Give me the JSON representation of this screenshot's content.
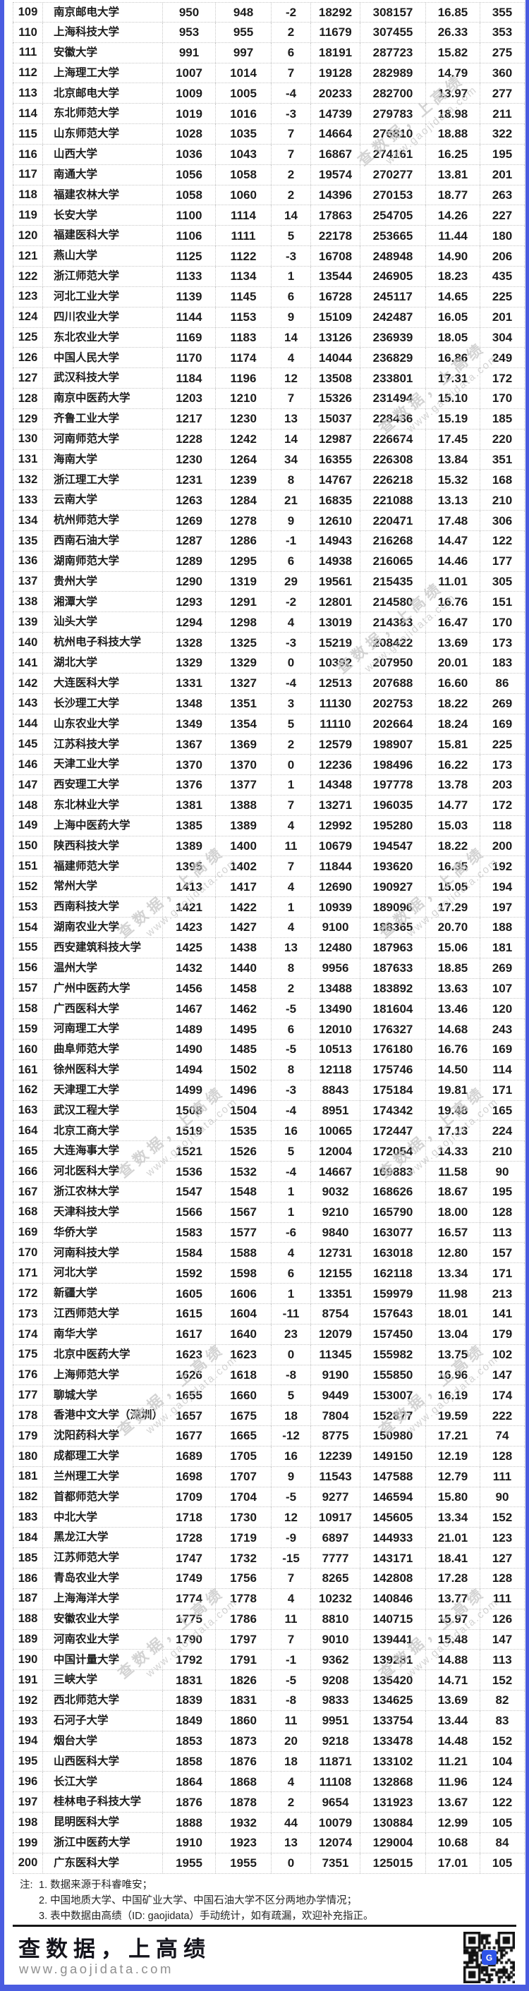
{
  "table": {
    "rows": [
      [
        "109",
        "南京邮电大学",
        "950",
        "948",
        "-2",
        "18292",
        "308157",
        "16.85",
        "355"
      ],
      [
        "110",
        "上海科技大学",
        "953",
        "955",
        "2",
        "11679",
        "307455",
        "26.33",
        "353"
      ],
      [
        "111",
        "安徽大学",
        "991",
        "997",
        "6",
        "18191",
        "287723",
        "15.82",
        "275"
      ],
      [
        "112",
        "上海理工大学",
        "1007",
        "1014",
        "7",
        "19128",
        "282989",
        "14.79",
        "360"
      ],
      [
        "113",
        "北京邮电大学",
        "1009",
        "1005",
        "-4",
        "20233",
        "282700",
        "13.97",
        "277"
      ],
      [
        "114",
        "东北师范大学",
        "1019",
        "1016",
        "-3",
        "14739",
        "279783",
        "18.98",
        "211"
      ],
      [
        "115",
        "山东师范大学",
        "1028",
        "1035",
        "7",
        "14664",
        "276810",
        "18.88",
        "322"
      ],
      [
        "116",
        "山西大学",
        "1036",
        "1043",
        "7",
        "16867",
        "274161",
        "16.25",
        "195"
      ],
      [
        "117",
        "南通大学",
        "1056",
        "1058",
        "2",
        "19574",
        "270277",
        "13.81",
        "201"
      ],
      [
        "118",
        "福建农林大学",
        "1058",
        "1060",
        "2",
        "14396",
        "270153",
        "18.77",
        "263"
      ],
      [
        "119",
        "长安大学",
        "1100",
        "1114",
        "14",
        "17863",
        "254705",
        "14.26",
        "227"
      ],
      [
        "120",
        "福建医科大学",
        "1106",
        "1111",
        "5",
        "22178",
        "253665",
        "11.44",
        "180"
      ],
      [
        "121",
        "燕山大学",
        "1125",
        "1122",
        "-3",
        "16708",
        "248948",
        "14.90",
        "206"
      ],
      [
        "122",
        "浙江师范大学",
        "1133",
        "1134",
        "1",
        "13544",
        "246905",
        "18.23",
        "435"
      ],
      [
        "123",
        "河北工业大学",
        "1139",
        "1145",
        "6",
        "16728",
        "245117",
        "14.65",
        "225"
      ],
      [
        "124",
        "四川农业大学",
        "1144",
        "1153",
        "9",
        "15109",
        "242487",
        "16.05",
        "201"
      ],
      [
        "125",
        "东北农业大学",
        "1169",
        "1183",
        "14",
        "13126",
        "236939",
        "18.05",
        "304"
      ],
      [
        "126",
        "中国人民大学",
        "1170",
        "1174",
        "4",
        "14044",
        "236829",
        "16.86",
        "249"
      ],
      [
        "127",
        "武汉科技大学",
        "1184",
        "1196",
        "12",
        "13508",
        "233801",
        "17.31",
        "172"
      ],
      [
        "128",
        "南京中医药大学",
        "1203",
        "1210",
        "7",
        "15326",
        "231494",
        "15.10",
        "170"
      ],
      [
        "129",
        "齐鲁工业大学",
        "1217",
        "1230",
        "13",
        "15037",
        "228436",
        "15.19",
        "185"
      ],
      [
        "130",
        "河南师范大学",
        "1228",
        "1242",
        "14",
        "12987",
        "226674",
        "17.45",
        "220"
      ],
      [
        "131",
        "海南大学",
        "1230",
        "1264",
        "34",
        "16355",
        "226308",
        "13.84",
        "351"
      ],
      [
        "132",
        "浙江理工大学",
        "1231",
        "1239",
        "8",
        "14767",
        "226218",
        "15.32",
        "168"
      ],
      [
        "133",
        "云南大学",
        "1263",
        "1284",
        "21",
        "16835",
        "221088",
        "13.13",
        "210"
      ],
      [
        "134",
        "杭州师范大学",
        "1269",
        "1278",
        "9",
        "12610",
        "220471",
        "17.48",
        "306"
      ],
      [
        "135",
        "西南石油大学",
        "1287",
        "1286",
        "-1",
        "14943",
        "216268",
        "14.47",
        "122"
      ],
      [
        "136",
        "湖南师范大学",
        "1289",
        "1295",
        "6",
        "14938",
        "216065",
        "14.46",
        "177"
      ],
      [
        "137",
        "贵州大学",
        "1290",
        "1319",
        "29",
        "19561",
        "215435",
        "11.01",
        "305"
      ],
      [
        "138",
        "湘潭大学",
        "1293",
        "1291",
        "-2",
        "12801",
        "214580",
        "16.76",
        "151"
      ],
      [
        "139",
        "汕头大学",
        "1294",
        "1298",
        "4",
        "13019",
        "214383",
        "16.47",
        "170"
      ],
      [
        "140",
        "杭州电子科技大学",
        "1328",
        "1325",
        "-3",
        "15219",
        "208422",
        "13.69",
        "173"
      ],
      [
        "141",
        "湖北大学",
        "1329",
        "1329",
        "0",
        "10392",
        "207950",
        "20.01",
        "183"
      ],
      [
        "142",
        "大连医科大学",
        "1331",
        "1327",
        "-4",
        "12513",
        "207688",
        "16.60",
        "86"
      ],
      [
        "143",
        "长沙理工大学",
        "1348",
        "1351",
        "3",
        "11130",
        "202753",
        "18.22",
        "269"
      ],
      [
        "144",
        "山东农业大学",
        "1349",
        "1354",
        "5",
        "11110",
        "202664",
        "18.24",
        "169"
      ],
      [
        "145",
        "江苏科技大学",
        "1367",
        "1369",
        "2",
        "12579",
        "198907",
        "15.81",
        "225"
      ],
      [
        "146",
        "天津工业大学",
        "1370",
        "1370",
        "0",
        "12236",
        "198496",
        "16.22",
        "173"
      ],
      [
        "147",
        "西安理工大学",
        "1376",
        "1377",
        "1",
        "14348",
        "197778",
        "13.78",
        "203"
      ],
      [
        "148",
        "东北林业大学",
        "1381",
        "1388",
        "7",
        "13271",
        "196035",
        "14.77",
        "172"
      ],
      [
        "149",
        "上海中医药大学",
        "1385",
        "1389",
        "4",
        "12992",
        "195280",
        "15.03",
        "118"
      ],
      [
        "150",
        "陕西科技大学",
        "1389",
        "1400",
        "11",
        "10679",
        "194547",
        "18.22",
        "200"
      ],
      [
        "151",
        "福建师范大学",
        "1395",
        "1402",
        "7",
        "11844",
        "193620",
        "16.35",
        "192"
      ],
      [
        "152",
        "常州大学",
        "1413",
        "1417",
        "4",
        "12690",
        "190927",
        "15.05",
        "194"
      ],
      [
        "153",
        "西南科技大学",
        "1421",
        "1422",
        "1",
        "10939",
        "189096",
        "17.29",
        "197"
      ],
      [
        "154",
        "湖南农业大学",
        "1423",
        "1427",
        "4",
        "9100",
        "188365",
        "20.70",
        "188"
      ],
      [
        "155",
        "西安建筑科技大学",
        "1425",
        "1438",
        "13",
        "12480",
        "187963",
        "15.06",
        "181"
      ],
      [
        "156",
        "温州大学",
        "1432",
        "1440",
        "8",
        "9956",
        "187633",
        "18.85",
        "269"
      ],
      [
        "157",
        "广州中医药大学",
        "1456",
        "1458",
        "2",
        "13488",
        "183892",
        "13.63",
        "107"
      ],
      [
        "158",
        "广西医科大学",
        "1467",
        "1462",
        "-5",
        "13490",
        "181604",
        "13.46",
        "120"
      ],
      [
        "159",
        "河南理工大学",
        "1489",
        "1495",
        "6",
        "12010",
        "176327",
        "14.68",
        "243"
      ],
      [
        "160",
        "曲阜师范大学",
        "1490",
        "1485",
        "-5",
        "10513",
        "176180",
        "16.76",
        "169"
      ],
      [
        "161",
        "徐州医科大学",
        "1494",
        "1502",
        "8",
        "12118",
        "175746",
        "14.50",
        "114"
      ],
      [
        "162",
        "天津理工大学",
        "1499",
        "1496",
        "-3",
        "8843",
        "175184",
        "19.81",
        "171"
      ],
      [
        "163",
        "武汉工程大学",
        "1508",
        "1504",
        "-4",
        "8951",
        "174342",
        "19.48",
        "165"
      ],
      [
        "164",
        "北京工商大学",
        "1519",
        "1535",
        "16",
        "10065",
        "172447",
        "17.13",
        "224"
      ],
      [
        "165",
        "大连海事大学",
        "1521",
        "1526",
        "5",
        "12004",
        "172054",
        "14.33",
        "210"
      ],
      [
        "166",
        "河北医科大学",
        "1536",
        "1532",
        "-4",
        "14667",
        "169883",
        "11.58",
        "90"
      ],
      [
        "167",
        "浙江农林大学",
        "1547",
        "1548",
        "1",
        "9032",
        "168626",
        "18.67",
        "195"
      ],
      [
        "168",
        "天津科技大学",
        "1566",
        "1567",
        "1",
        "9210",
        "165790",
        "18.00",
        "128"
      ],
      [
        "169",
        "华侨大学",
        "1583",
        "1577",
        "-6",
        "9840",
        "163077",
        "16.57",
        "113"
      ],
      [
        "170",
        "河南科技大学",
        "1584",
        "1588",
        "4",
        "12731",
        "163018",
        "12.80",
        "157"
      ],
      [
        "171",
        "河北大学",
        "1592",
        "1598",
        "6",
        "12155",
        "162118",
        "13.34",
        "171"
      ],
      [
        "172",
        "新疆大学",
        "1605",
        "1606",
        "1",
        "13351",
        "159979",
        "11.98",
        "213"
      ],
      [
        "173",
        "江西师范大学",
        "1615",
        "1604",
        "-11",
        "8754",
        "157643",
        "18.01",
        "141"
      ],
      [
        "174",
        "南华大学",
        "1617",
        "1640",
        "23",
        "12079",
        "157450",
        "13.04",
        "179"
      ],
      [
        "175",
        "北京中医药大学",
        "1623",
        "1623",
        "0",
        "11345",
        "155982",
        "13.75",
        "102"
      ],
      [
        "176",
        "上海师范大学",
        "1626",
        "1618",
        "-8",
        "9190",
        "155850",
        "16.96",
        "147"
      ],
      [
        "177",
        "聊城大学",
        "1655",
        "1660",
        "5",
        "9449",
        "153007",
        "16.19",
        "174"
      ],
      [
        "178",
        "香港中文大学（深圳）",
        "1657",
        "1675",
        "18",
        "7804",
        "152877",
        "19.59",
        "222"
      ],
      [
        "179",
        "沈阳药科大学",
        "1677",
        "1665",
        "-12",
        "8775",
        "150980",
        "17.21",
        "74"
      ],
      [
        "180",
        "成都理工大学",
        "1689",
        "1705",
        "16",
        "12239",
        "149150",
        "12.19",
        "128"
      ],
      [
        "181",
        "兰州理工大学",
        "1698",
        "1707",
        "9",
        "11543",
        "147588",
        "12.79",
        "111"
      ],
      [
        "182",
        "首都师范大学",
        "1709",
        "1704",
        "-5",
        "9277",
        "146594",
        "15.80",
        "90"
      ],
      [
        "183",
        "中北大学",
        "1718",
        "1730",
        "12",
        "10917",
        "145605",
        "13.34",
        "152"
      ],
      [
        "184",
        "黑龙江大学",
        "1728",
        "1719",
        "-9",
        "6897",
        "144933",
        "21.01",
        "123"
      ],
      [
        "185",
        "江苏师范大学",
        "1747",
        "1732",
        "-15",
        "7777",
        "143171",
        "18.41",
        "127"
      ],
      [
        "186",
        "青岛农业大学",
        "1749",
        "1756",
        "7",
        "8265",
        "142808",
        "17.28",
        "128"
      ],
      [
        "187",
        "上海海洋大学",
        "1774",
        "1778",
        "4",
        "10232",
        "140846",
        "13.77",
        "111"
      ],
      [
        "188",
        "安徽农业大学",
        "1775",
        "1786",
        "11",
        "8810",
        "140715",
        "15.97",
        "126"
      ],
      [
        "189",
        "河南农业大学",
        "1790",
        "1797",
        "7",
        "9010",
        "139441",
        "15.48",
        "147"
      ],
      [
        "190",
        "中国计量大学",
        "1792",
        "1791",
        "-1",
        "9362",
        "139281",
        "14.88",
        "113"
      ],
      [
        "191",
        "三峡大学",
        "1831",
        "1826",
        "-5",
        "9208",
        "135420",
        "14.71",
        "152"
      ],
      [
        "192",
        "西北师范大学",
        "1839",
        "1831",
        "-8",
        "9833",
        "134625",
        "13.69",
        "82"
      ],
      [
        "193",
        "石河子大学",
        "1849",
        "1860",
        "11",
        "9951",
        "133754",
        "13.44",
        "83"
      ],
      [
        "194",
        "烟台大学",
        "1853",
        "1873",
        "20",
        "9218",
        "133478",
        "14.48",
        "152"
      ],
      [
        "195",
        "山西医科大学",
        "1858",
        "1876",
        "18",
        "11871",
        "133102",
        "11.21",
        "104"
      ],
      [
        "196",
        "长江大学",
        "1864",
        "1868",
        "4",
        "11108",
        "132868",
        "11.96",
        "124"
      ],
      [
        "197",
        "桂林电子科技大学",
        "1876",
        "1878",
        "2",
        "9654",
        "131923",
        "13.67",
        "122"
      ],
      [
        "198",
        "昆明医科大学",
        "1888",
        "1932",
        "44",
        "10079",
        "130884",
        "12.99",
        "105"
      ],
      [
        "199",
        "浙江中医药大学",
        "1910",
        "1923",
        "13",
        "12074",
        "129004",
        "10.68",
        "84"
      ],
      [
        "200",
        "广东医科大学",
        "1955",
        "1955",
        "0",
        "7351",
        "125015",
        "17.01",
        "105"
      ]
    ]
  },
  "notes": {
    "prefix": "注:",
    "items": [
      "1. 数据来源于科睿唯安；",
      "2. 中国地质大学、中国矿业大学、中国石油大学不区分两地办学情况；",
      "3. 表中数据由高绩（ID: gaojidata）手动统计，如有疏漏，欢迎补充指正。"
    ]
  },
  "footer": {
    "slogan": "查数据，上高绩",
    "url": "www.gaojidata.com"
  },
  "watermark": {
    "line1": "查数据，上高绩",
    "line2": "www.gaojidata.com"
  },
  "colors": {
    "border_blue": "#4a5ce0",
    "text": "#1c1c1c",
    "grid_dot": "#c7c7c7",
    "watermark": "#c9c9c9",
    "qr_logo_blue": "#2e53e8"
  }
}
